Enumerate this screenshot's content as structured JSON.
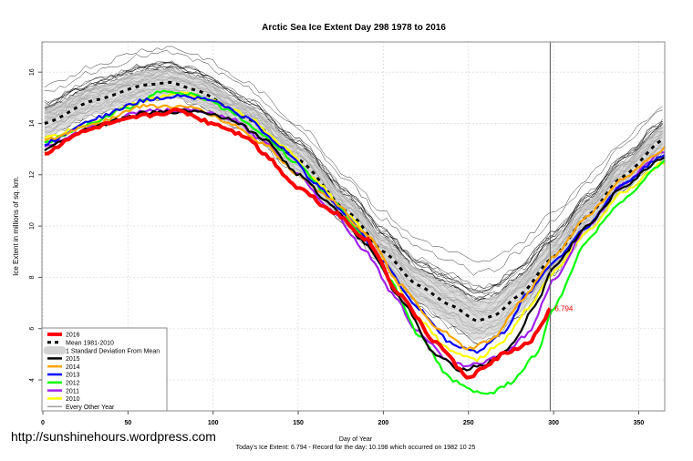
{
  "chart_data": {
    "type": "line",
    "title": "Arctic Sea Ice Extent Day 298 1978 to 2016",
    "xlabel": "Day of Year",
    "ylabel": "Ice Extent in millions of sq. km.",
    "xlim": [
      0,
      366
    ],
    "ylim": [
      2.8,
      17.2
    ],
    "xticks": [
      "0",
      "50",
      "100",
      "150",
      "200",
      "250",
      "300",
      "350"
    ],
    "yticks": [
      "4",
      "6",
      "8",
      "10",
      "12",
      "14",
      "16"
    ],
    "grid": true,
    "legend_position": "bottom-left",
    "current_day": 298,
    "current_value_label": "6.794",
    "footer_caption": "Today's Ice Extent: 6.794  - Record for the day: 10.198 which occurred on 1982 10 25",
    "watermark": "http://sunshinehours.wordpress.com",
    "mean": {
      "name": "Mean 1981-2010",
      "color": "#000000",
      "x": [
        1,
        30,
        60,
        75,
        90,
        120,
        150,
        180,
        200,
        220,
        240,
        255,
        265,
        280,
        300,
        320,
        340,
        365
      ],
      "y": [
        14.0,
        14.9,
        15.5,
        15.6,
        15.3,
        14.2,
        12.6,
        10.5,
        9.0,
        7.7,
        6.9,
        6.3,
        6.5,
        7.3,
        8.8,
        10.4,
        11.9,
        13.4
      ]
    },
    "std_band": {
      "name": "1 Standard Deviation From Mean",
      "color": "#d3d3d3",
      "width": 0.55
    },
    "series": [
      {
        "name": "2016",
        "color": "#ff0000",
        "x": [
          1,
          20,
          40,
          60,
          80,
          100,
          120,
          130,
          150,
          170,
          190,
          210,
          230,
          250,
          260,
          270,
          285,
          295,
          298
        ],
        "y": [
          12.8,
          13.6,
          14.0,
          14.3,
          14.5,
          14.0,
          13.5,
          12.8,
          11.5,
          10.6,
          9.5,
          7.3,
          5.5,
          4.1,
          4.5,
          5.0,
          5.4,
          6.3,
          6.794
        ]
      },
      {
        "name": "2015",
        "color": "#000000",
        "x": [
          1,
          30,
          60,
          90,
          110,
          130,
          150,
          170,
          190,
          210,
          230,
          245,
          260,
          275,
          290,
          300,
          320,
          340,
          365
        ],
        "y": [
          13.0,
          13.9,
          14.4,
          14.5,
          14.2,
          13.4,
          12.0,
          10.8,
          9.3,
          7.2,
          5.0,
          4.4,
          4.6,
          5.3,
          7.0,
          8.4,
          10.0,
          11.5,
          12.7
        ]
      },
      {
        "name": "2014",
        "color": "#ffa500",
        "x": [
          1,
          30,
          60,
          90,
          110,
          130,
          150,
          170,
          190,
          210,
          230,
          250,
          265,
          280,
          300,
          320,
          340,
          365
        ],
        "y": [
          13.3,
          14.0,
          14.7,
          14.6,
          14.0,
          13.2,
          12.0,
          11.0,
          9.7,
          7.7,
          6.1,
          5.2,
          5.6,
          7.0,
          8.8,
          10.4,
          11.8,
          13.0
        ]
      },
      {
        "name": "2013",
        "color": "#0000ff",
        "x": [
          1,
          30,
          60,
          80,
          100,
          120,
          140,
          160,
          180,
          200,
          220,
          240,
          255,
          270,
          285,
          300,
          320,
          340,
          365
        ],
        "y": [
          13.2,
          14.2,
          14.9,
          15.1,
          14.9,
          14.2,
          13.1,
          11.7,
          10.3,
          8.6,
          6.8,
          5.4,
          5.1,
          5.8,
          7.4,
          8.6,
          10.0,
          11.6,
          12.8
        ]
      },
      {
        "name": "2012",
        "color": "#00ff00",
        "x": [
          1,
          20,
          50,
          70,
          90,
          110,
          130,
          150,
          170,
          190,
          205,
          220,
          240,
          260,
          275,
          290,
          300,
          320,
          340,
          365
        ],
        "y": [
          13.2,
          13.8,
          14.6,
          15.3,
          15.1,
          14.5,
          13.5,
          12.4,
          11.0,
          9.5,
          7.8,
          5.8,
          4.0,
          3.4,
          3.9,
          5.0,
          6.8,
          9.5,
          11.0,
          12.5
        ]
      },
      {
        "name": "2011",
        "color": "#a020f0",
        "x": [
          1,
          30,
          60,
          90,
          110,
          130,
          150,
          170,
          190,
          205,
          220,
          240,
          255,
          270,
          285,
          300,
          320,
          340,
          365
        ],
        "y": [
          13.1,
          13.9,
          14.5,
          14.5,
          14.2,
          13.3,
          12.0,
          10.6,
          9.0,
          7.4,
          5.9,
          4.6,
          4.6,
          5.0,
          5.8,
          7.9,
          10.0,
          11.6,
          12.9
        ]
      },
      {
        "name": "2010",
        "color": "#ffff00",
        "x": [
          1,
          30,
          60,
          80,
          100,
          120,
          140,
          160,
          180,
          200,
          220,
          240,
          255,
          270,
          285,
          300,
          320,
          340,
          365
        ],
        "y": [
          13.4,
          14.1,
          14.9,
          15.2,
          14.9,
          14.3,
          13.2,
          11.8,
          10.4,
          8.6,
          6.4,
          5.1,
          4.8,
          5.5,
          6.8,
          8.2,
          9.8,
          11.3,
          12.5
        ]
      }
    ],
    "other_years": {
      "name": "Every Other Year",
      "color": "#000000"
    }
  }
}
